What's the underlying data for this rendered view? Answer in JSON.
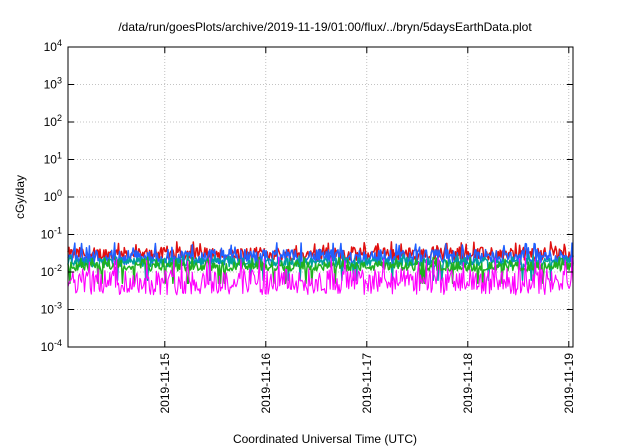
{
  "chart_data": {
    "type": "line",
    "title": "/data/run/goesPlots/archive/2019-11-19/01:00/flux/../bryn/5daysEarthData.plot",
    "xlabel": "Coordinated Universal Time (UTC)",
    "ylabel": "cGy/day",
    "yscale": "log",
    "ylim": [
      0.0001,
      10000
    ],
    "xlim": [
      "2019-11-14 01:00",
      "2019-11-19 01:00"
    ],
    "grid": true,
    "legend": "none",
    "y_ticks": [
      {
        "base": "10",
        "exp": "-4",
        "value": 0.0001
      },
      {
        "base": "10",
        "exp": "-3",
        "value": 0.001
      },
      {
        "base": "10",
        "exp": "-2",
        "value": 0.01
      },
      {
        "base": "10",
        "exp": "-1",
        "value": 0.1
      },
      {
        "base": "10",
        "exp": "0",
        "value": 1
      },
      {
        "base": "10",
        "exp": "1",
        "value": 10
      },
      {
        "base": "10",
        "exp": "2",
        "value": 100
      },
      {
        "base": "10",
        "exp": "3",
        "value": 1000
      },
      {
        "base": "10",
        "exp": "4",
        "value": 10000
      }
    ],
    "x_ticks": [
      {
        "label": "2019-11-15",
        "value": "2019-11-15 00:00"
      },
      {
        "label": "2019-11-16",
        "value": "2019-11-16 00:00"
      },
      {
        "label": "2019-11-17",
        "value": "2019-11-17 00:00"
      },
      {
        "label": "2019-11-18",
        "value": "2019-11-18 00:00"
      },
      {
        "label": "2019-11-19",
        "value": "2019-11-19 00:00"
      }
    ],
    "series": [
      {
        "color": "#e01010",
        "base": 0.03,
        "spread": 0.18,
        "low": 0.025,
        "high": 0.065
      },
      {
        "color": "#2060ff",
        "base": 0.025,
        "spread": 0.2,
        "low": 0.016,
        "high": 0.06
      },
      {
        "color": "#00a0a0",
        "base": 0.018,
        "spread": 0.12,
        "low": 0.006,
        "high": 0.03
      },
      {
        "color": "#20b020",
        "base": 0.014,
        "spread": 0.12,
        "low": 0.005,
        "high": 0.025
      },
      {
        "color": "#ff00ff",
        "base": 0.0055,
        "spread": 0.35,
        "low": 0.0035,
        "high": 0.025
      }
    ]
  }
}
